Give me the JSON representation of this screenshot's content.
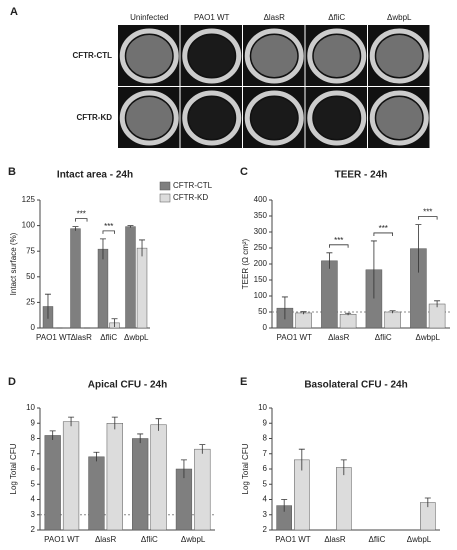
{
  "panel_a": {
    "panel_label": "A",
    "columns": [
      "Uninfected",
      "PAO1 WT",
      "ΔlasR",
      "ΔfliC",
      "ΔwbpL"
    ],
    "rows": [
      "CFTR-CTL",
      "CFTR-KD"
    ]
  },
  "chart_data": [
    {
      "type": "bar",
      "panel_label": "B",
      "title": "Intact area - 24h",
      "y_label": "Intact surface (%)",
      "categories": [
        "PAO1 WT",
        "ΔlasR",
        "ΔfliC",
        "ΔwbpL"
      ],
      "series": [
        {
          "name": "CFTR-CTL",
          "color": "#7f7f7f",
          "values": [
            21,
            97,
            77,
            99
          ],
          "errors": [
            12,
            2,
            10,
            1
          ]
        },
        {
          "name": "CFTR-KD",
          "color": "#dcdcdc",
          "values": [
            0,
            0,
            5,
            78
          ],
          "errors": [
            0,
            0,
            4,
            8
          ]
        }
      ],
      "ylim": [
        0,
        125
      ],
      "yticks": [
        0,
        25,
        50,
        75,
        100,
        125
      ],
      "legend": "right",
      "annotations": [
        {
          "category": "ΔlasR",
          "text": "***"
        },
        {
          "category": "ΔfliC",
          "text": "***"
        }
      ]
    },
    {
      "type": "bar",
      "panel_label": "C",
      "title": "TEER - 24h",
      "y_label": "TEER (Ω cm²)",
      "categories": [
        "PAO1 WT",
        "ΔlasR",
        "ΔfliC",
        "ΔwbpL"
      ],
      "series": [
        {
          "name": "CFTR-CTL",
          "color": "#7f7f7f",
          "values": [
            62,
            210,
            182,
            248
          ],
          "errors": [
            35,
            25,
            90,
            75
          ]
        },
        {
          "name": "CFTR-KD",
          "color": "#dcdcdc",
          "values": [
            47,
            43,
            50,
            75
          ],
          "errors": [
            4,
            3,
            4,
            10
          ]
        }
      ],
      "ylim": [
        0,
        400
      ],
      "yticks": [
        0,
        50,
        100,
        150,
        200,
        250,
        300,
        350,
        400
      ],
      "reference_line": 50,
      "annotations": [
        {
          "category": "ΔlasR",
          "text": "***"
        },
        {
          "category": "ΔfliC",
          "text": "***"
        },
        {
          "category": "ΔwbpL",
          "text": "***"
        }
      ]
    },
    {
      "type": "bar",
      "panel_label": "D",
      "title": "Apical CFU - 24h",
      "y_label": "Log Total CFU",
      "categories": [
        "PAO1 WT",
        "ΔlasR",
        "ΔfliC",
        "ΔwbpL"
      ],
      "series": [
        {
          "name": "CFTR-CTL",
          "color": "#7f7f7f",
          "values": [
            8.2,
            6.8,
            8.0,
            6.0
          ],
          "errors": [
            0.3,
            0.3,
            0.3,
            0.6
          ]
        },
        {
          "name": "CFTR-KD",
          "color": "#dcdcdc",
          "values": [
            9.1,
            9.0,
            8.9,
            7.3
          ],
          "errors": [
            0.3,
            0.4,
            0.4,
            0.3
          ]
        }
      ],
      "ylim": [
        2,
        10
      ],
      "yticks": [
        2,
        3,
        4,
        5,
        6,
        7,
        8,
        9,
        10
      ],
      "reference_line": 3
    },
    {
      "type": "bar",
      "panel_label": "E",
      "title": "Basolateral CFU - 24h",
      "y_label": "Log Total CFU",
      "categories": [
        "PAO1 WT",
        "ΔlasR",
        "ΔfliC",
        "ΔwbpL"
      ],
      "series": [
        {
          "name": "CFTR-CTL",
          "color": "#7f7f7f",
          "values": [
            3.6,
            null,
            null,
            null
          ],
          "errors": [
            0.4,
            null,
            null,
            null
          ]
        },
        {
          "name": "CFTR-KD",
          "color": "#dcdcdc",
          "values": [
            6.6,
            6.1,
            null,
            3.8
          ],
          "errors": [
            0.7,
            0.5,
            null,
            0.3
          ]
        }
      ],
      "ylim": [
        2,
        10
      ],
      "yticks": [
        2,
        3,
        4,
        5,
        6,
        7,
        8,
        9,
        10
      ]
    }
  ]
}
